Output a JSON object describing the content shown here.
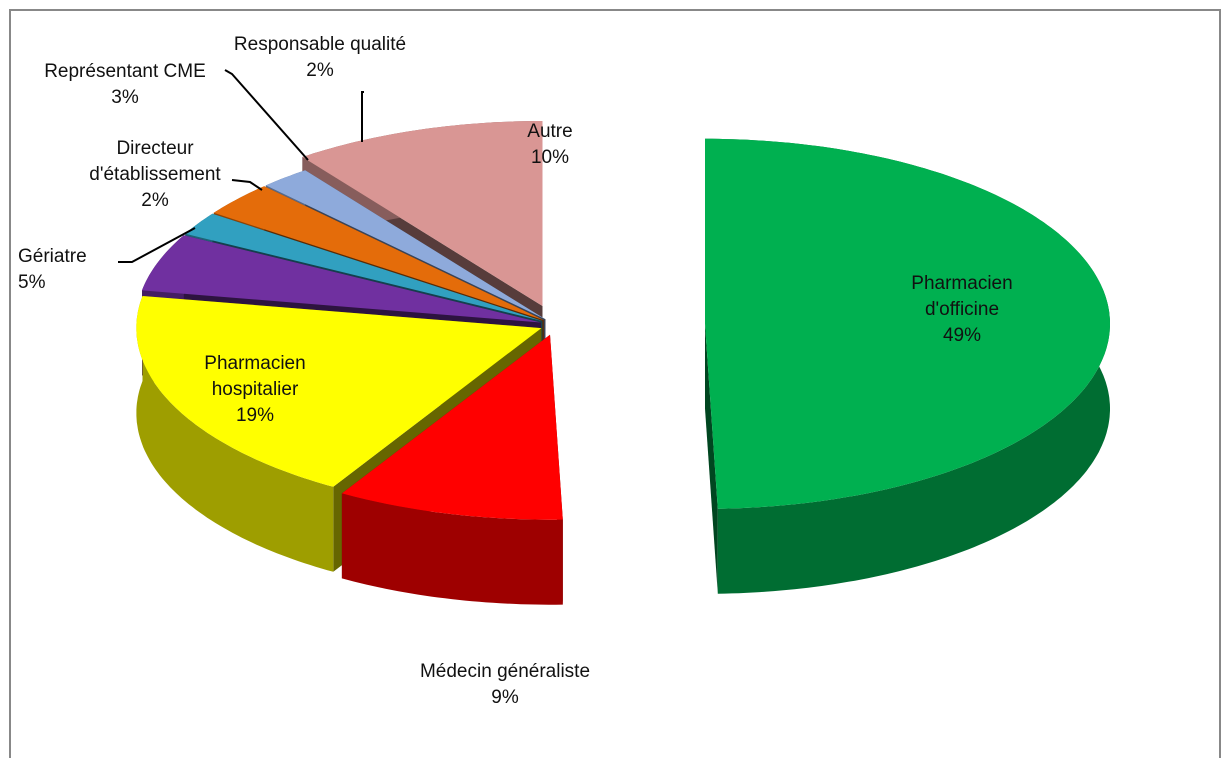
{
  "chart_data": {
    "type": "pie3d",
    "categories": [
      "Pharmacien d'officine",
      "Médecin généraliste",
      "Pharmacien hospitalier",
      "Gériatre",
      "Directeur d'établissement",
      "Représentant CME",
      "Responsable qualité",
      "Autre"
    ],
    "values": [
      49,
      9,
      19,
      5,
      2,
      3,
      2,
      10
    ],
    "value_labels": [
      "49%",
      "9%",
      "19%",
      "5%",
      "2%",
      "3%",
      "2%",
      "10%"
    ],
    "colors": [
      "#00b050",
      "#ff0000",
      "#ffff00",
      "#7030a0",
      "#31a0c0",
      "#e46c0a",
      "#8eaadb",
      "#d99694"
    ]
  }
}
